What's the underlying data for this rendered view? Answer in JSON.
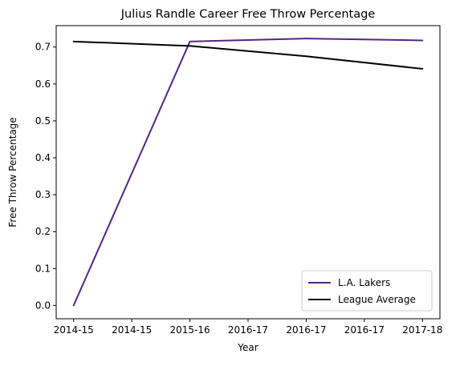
{
  "chart_data": {
    "type": "line",
    "title": "Julius Randle Career Free Throw Percentage",
    "xlabel": "Year",
    "ylabel": "Free Throw Percentage",
    "x_tick_labels": [
      "2014-15",
      "2014-15",
      "2015-16",
      "2016-17",
      "2016-17",
      "2016-17",
      "2017-18"
    ],
    "x": [
      0,
      1,
      2,
      3
    ],
    "categories": [
      "2014-15",
      "2015-16",
      "2016-17",
      "2017-18"
    ],
    "ylim": [
      -0.036,
      0.758
    ],
    "xlim": [
      -0.15,
      3.15
    ],
    "y_ticks": [
      0.0,
      0.1,
      0.2,
      0.3,
      0.4,
      0.5,
      0.6,
      0.7
    ],
    "y_tick_labels": [
      "0.0",
      "0.1",
      "0.2",
      "0.3",
      "0.4",
      "0.5",
      "0.6",
      "0.7"
    ],
    "x_ticks": [
      0,
      0.5,
      1,
      1.5,
      2,
      2.5,
      3
    ],
    "grid": false,
    "legend_position": "lower-right",
    "series": [
      {
        "name": "L.A. Lakers",
        "color": "#552583",
        "values": [
          0.0,
          0.715,
          0.723,
          0.718
        ]
      },
      {
        "name": "League Average",
        "color": "#000000",
        "values": [
          0.715,
          0.703,
          0.675,
          0.641
        ]
      }
    ]
  }
}
